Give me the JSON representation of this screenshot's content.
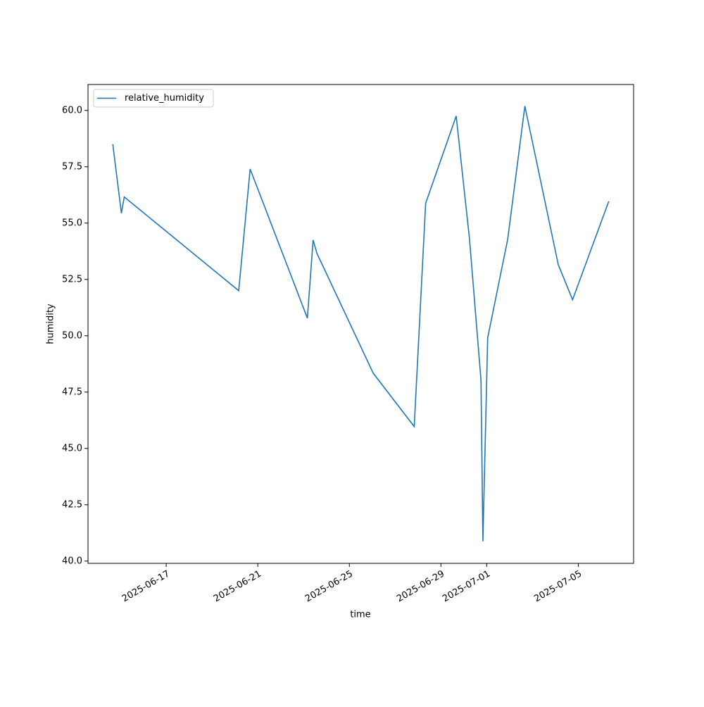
{
  "chart_data": {
    "type": "line",
    "xlabel": "time",
    "ylabel": "humidity",
    "x": [
      "2025-06-14T16:00",
      "2025-06-15T01:00",
      "2025-06-15T04:00",
      "2025-06-20T04:00",
      "2025-06-20T16:00",
      "2025-06-23T04:00",
      "2025-06-23T10:00",
      "2025-06-23T14:00",
      "2025-06-26T01:00",
      "2025-06-27T20:00",
      "2025-06-28T08:00",
      "2025-06-29T16:00",
      "2025-06-30T06:00",
      "2025-06-30T18:00",
      "2025-06-30T20:00",
      "2025-07-01T01:00",
      "2025-07-01T22:00",
      "2025-07-02T16:00",
      "2025-07-04T03:00",
      "2025-07-04T18:00",
      "2025-07-06T08:00"
    ],
    "series": [
      {
        "name": "relative_humidity",
        "color": "#1f77b4",
        "values": [
          58.5,
          55.44,
          56.16,
          52.0,
          57.4,
          50.78,
          54.25,
          53.66,
          48.34,
          45.97,
          55.88,
          59.75,
          54.28,
          48.03,
          40.88,
          49.9,
          54.28,
          60.19,
          53.16,
          51.6,
          55.97
        ]
      }
    ],
    "xlim": [
      "2025-06-13T14:00",
      "2025-07-07T10:00"
    ],
    "xticks": [
      "2025-06-17",
      "2025-06-21",
      "2025-06-25",
      "2025-06-29",
      "2025-07-01",
      "2025-07-05"
    ],
    "ylim": [
      39.9,
      61.15
    ],
    "yticks": [
      {
        "value": 40,
        "label": "40.0"
      },
      42.5,
      {
        "value": 45,
        "label": "45.0"
      },
      47.5,
      {
        "value": 50,
        "label": "50.0"
      },
      52.5,
      {
        "value": 55,
        "label": "55.0"
      },
      57.5,
      {
        "value": 60,
        "label": "60.0"
      }
    ],
    "grid": false,
    "legend": "upper left"
  }
}
